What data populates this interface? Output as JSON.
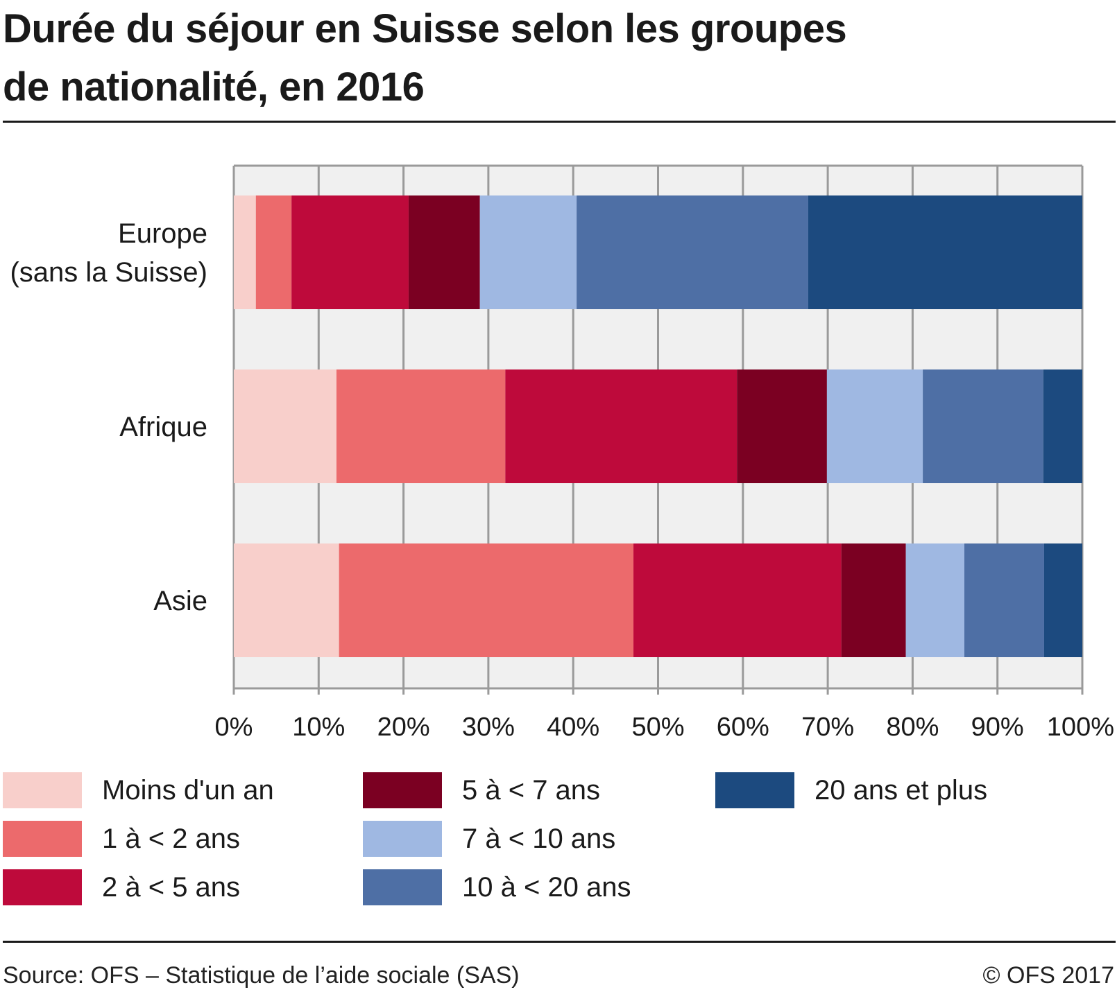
{
  "title_lines": [
    "Durée du séjour en Suisse selon les groupes",
    "de nationalité, en 2016"
  ],
  "chart_data": {
    "type": "bar",
    "orientation": "horizontal",
    "stacked": true,
    "categories": [
      "Europe\n(sans la Suisse)",
      "Afrique",
      "Asie"
    ],
    "xlim": [
      0,
      100
    ],
    "x_ticks": [
      "0%",
      "10%",
      "20%",
      "30%",
      "40%",
      "50%",
      "60%",
      "70%",
      "80%",
      "90%",
      "100%"
    ],
    "grid": true,
    "legend_position": "bottom",
    "series": [
      {
        "name": "Moins d'un an",
        "color": "#f8cfcb",
        "values": [
          2.6,
          12.1,
          12.4
        ]
      },
      {
        "name": "1 à < 2 ans",
        "color": "#ec6a6c",
        "values": [
          4.2,
          19.9,
          34.7
        ]
      },
      {
        "name": "2 à < 5 ans",
        "color": "#be0a3b",
        "values": [
          13.8,
          27.3,
          24.5
        ]
      },
      {
        "name": "5 à < 7 ans",
        "color": "#7b0022",
        "values": [
          8.4,
          10.6,
          7.6
        ]
      },
      {
        "name": "7 à < 10 ans",
        "color": "#9fb8e2",
        "values": [
          11.4,
          11.3,
          6.9
        ]
      },
      {
        "name": "10 à < 20 ans",
        "color": "#4e6fa5",
        "values": [
          27.3,
          14.2,
          9.4
        ]
      },
      {
        "name": "20 ans et plus",
        "color": "#1c4a7f",
        "values": [
          32.3,
          4.6,
          4.5
        ]
      }
    ]
  },
  "footer": {
    "source": "Source: OFS – Statistique de l’aide sociale (SAS)",
    "copyright": "© OFS 2017"
  }
}
